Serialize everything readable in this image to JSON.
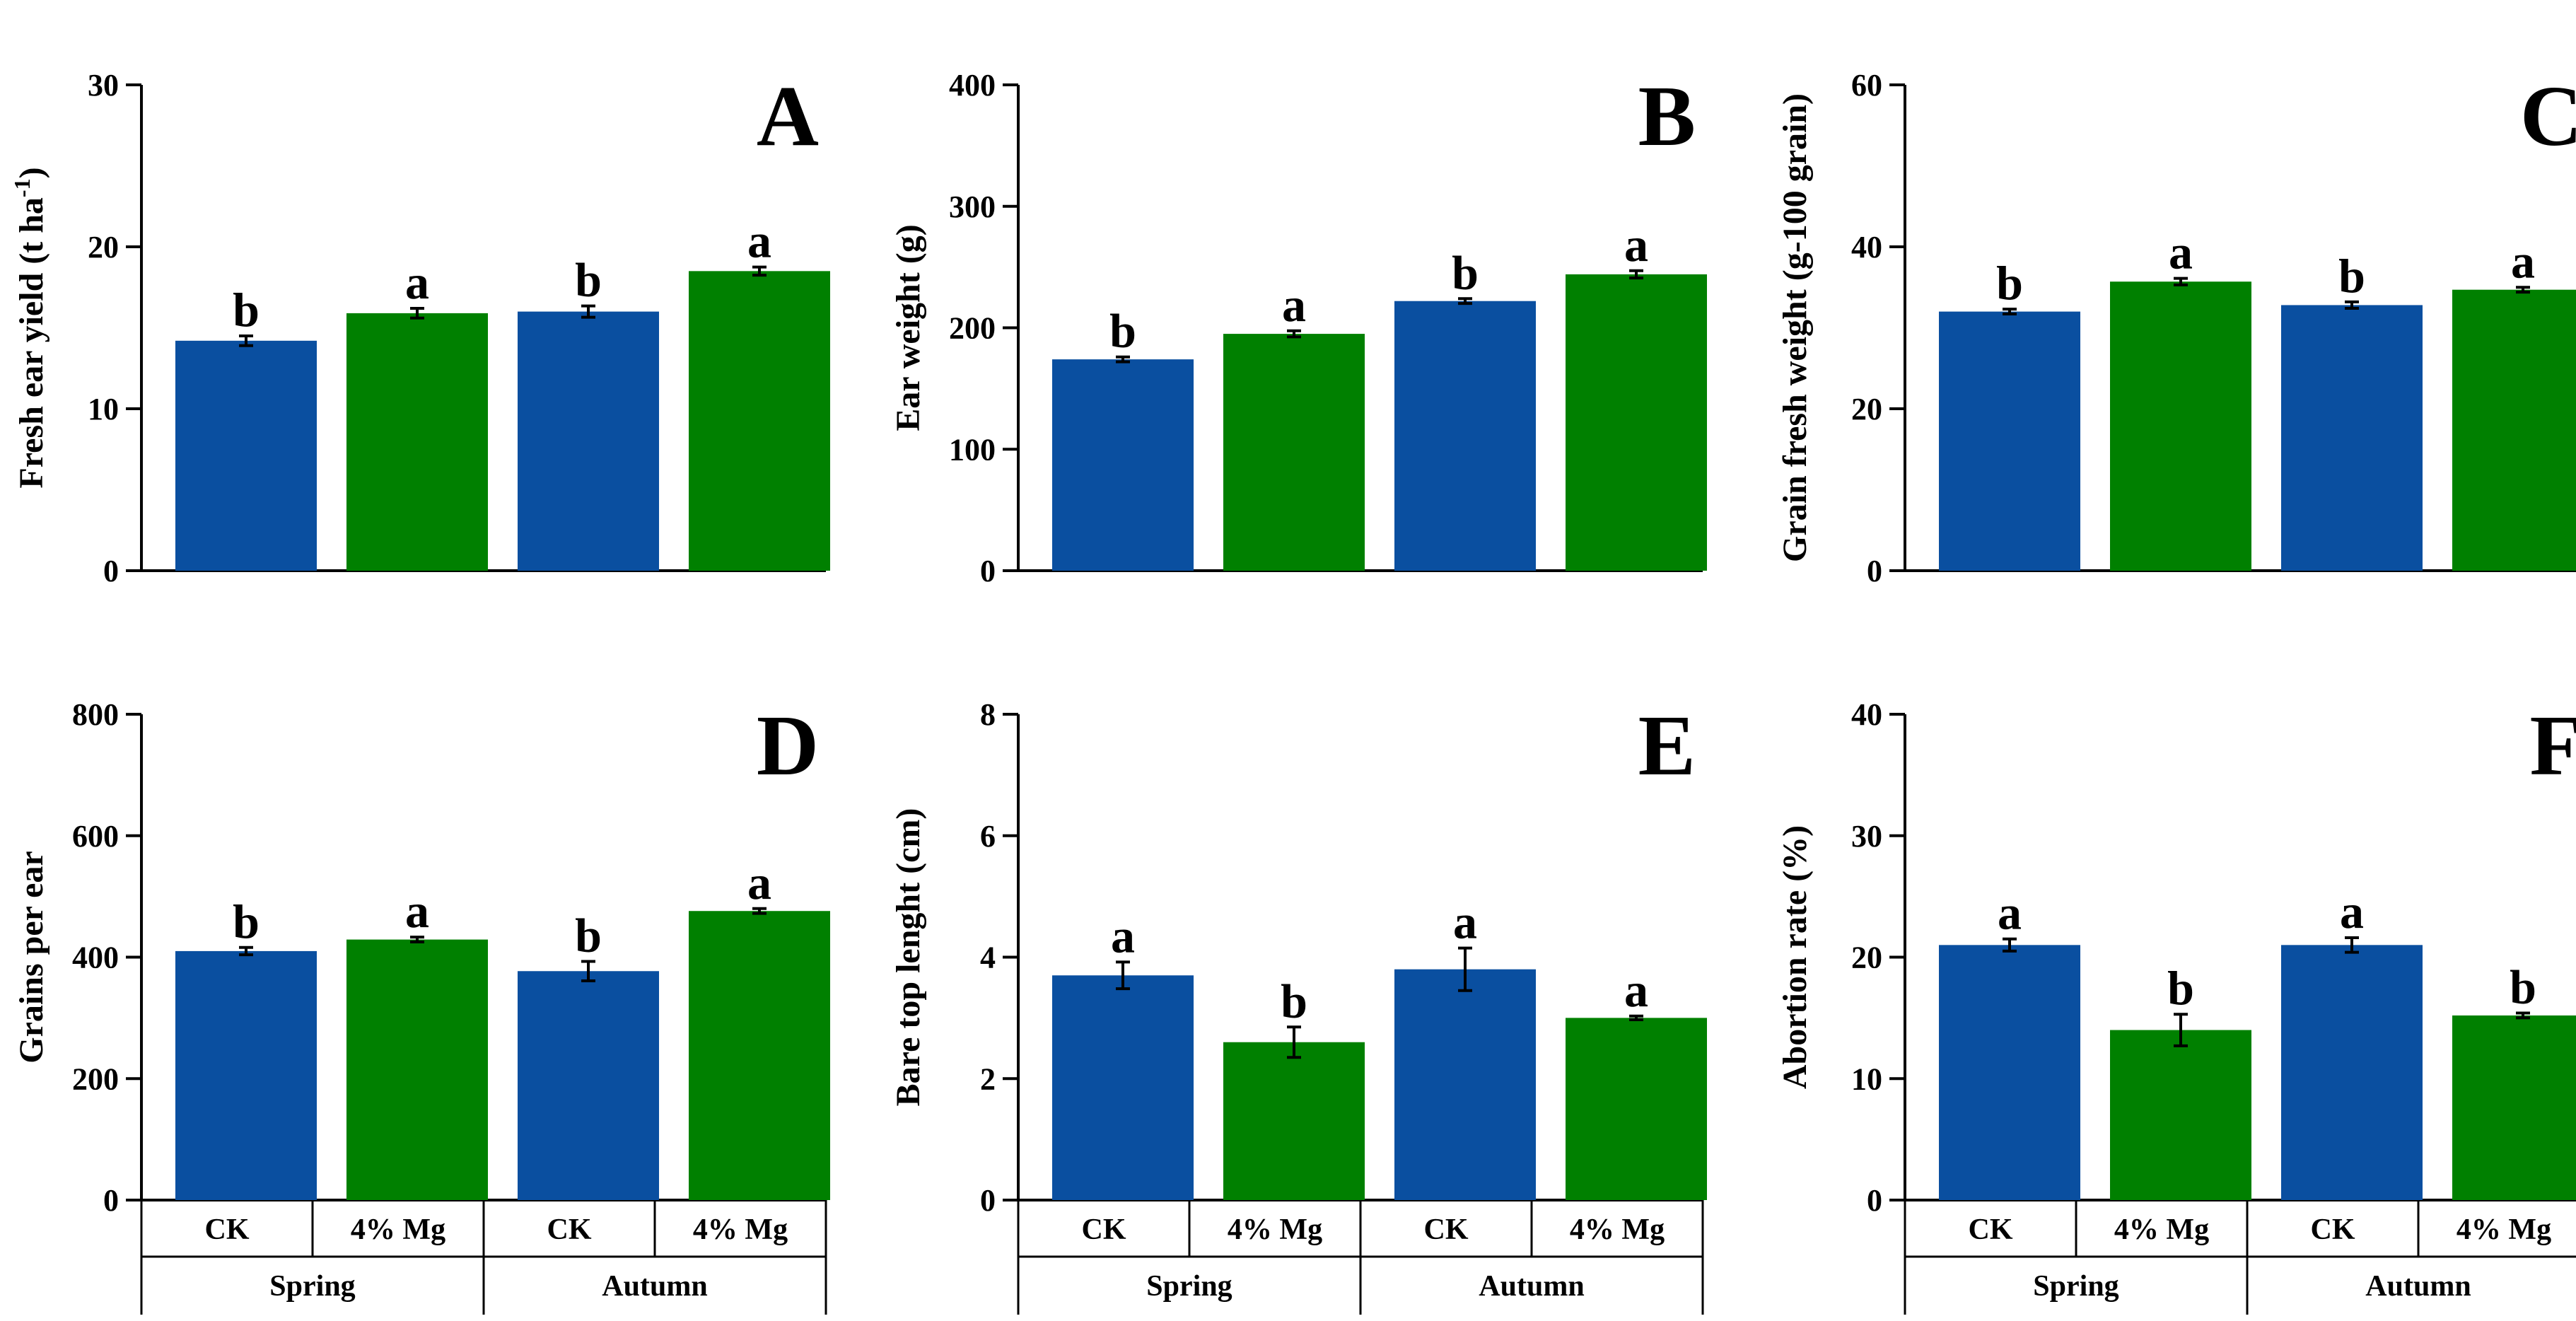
{
  "colors": {
    "ck": "#0a4fa0",
    "mg": "#008000",
    "axis": "#000000"
  },
  "chart_data": [
    {
      "type": "bar",
      "panel": "A",
      "ylabel_main": "Fresh ear yield (t ha",
      "ylabel_sup": "-1",
      "ylabel_end": ")",
      "ylim": [
        0,
        30
      ],
      "yticks": [
        "0",
        "10",
        "20",
        "30"
      ],
      "categories": [
        "CK",
        "4% Mg",
        "CK",
        "4% Mg"
      ],
      "groups": [
        "Spring",
        "Autumn"
      ],
      "values": [
        14.2,
        15.9,
        16.0,
        18.5
      ],
      "errors": [
        0.3,
        0.3,
        0.35,
        0.25
      ],
      "letters": [
        "b",
        "a",
        "b",
        "a"
      ]
    },
    {
      "type": "bar",
      "panel": "B",
      "ylabel": "Ear weight (g)",
      "ylim": [
        0,
        400
      ],
      "yticks": [
        "0",
        "100",
        "200",
        "300",
        "400"
      ],
      "categories": [
        "CK",
        "4% Mg",
        "CK",
        "4% Mg"
      ],
      "groups": [
        "Spring",
        "Autumn"
      ],
      "values": [
        174,
        195,
        222,
        244
      ],
      "errors": [
        2,
        2.5,
        2,
        3
      ],
      "letters": [
        "b",
        "a",
        "b",
        "a"
      ]
    },
    {
      "type": "bar",
      "panel": "C",
      "ylabel": "Grain fresh weight (g-100 grain)",
      "ylim": [
        0,
        60
      ],
      "yticks": [
        "0",
        "20",
        "40",
        "60"
      ],
      "categories": [
        "CK",
        "4% Mg",
        "CK",
        "4% Mg"
      ],
      "groups": [
        "Spring",
        "Autumn"
      ],
      "values": [
        32.0,
        35.7,
        32.8,
        34.7
      ],
      "errors": [
        0.3,
        0.4,
        0.4,
        0.3
      ],
      "letters": [
        "b",
        "a",
        "b",
        "a"
      ]
    },
    {
      "type": "bar",
      "panel": "D",
      "ylabel": "Grains per ear",
      "ylim": [
        0,
        800
      ],
      "yticks": [
        "0",
        "200",
        "400",
        "600",
        "800"
      ],
      "categories": [
        "CK",
        "4% Mg",
        "CK",
        "4% Mg"
      ],
      "groups": [
        "Spring",
        "Autumn"
      ],
      "values": [
        410,
        429,
        377,
        476
      ],
      "errors": [
        6,
        4,
        16,
        4
      ],
      "letters": [
        "b",
        "a",
        "b",
        "a"
      ]
    },
    {
      "type": "bar",
      "panel": "E",
      "ylabel": "Bare top lenght (cm)",
      "ylim": [
        0,
        8
      ],
      "yticks": [
        "0",
        "2",
        "4",
        "6",
        "8"
      ],
      "categories": [
        "CK",
        "4% Mg",
        "CK",
        "4% Mg"
      ],
      "groups": [
        "Spring",
        "Autumn"
      ],
      "values": [
        3.7,
        2.6,
        3.8,
        3.0
      ],
      "errors": [
        0.22,
        0.25,
        0.35,
        0.03
      ],
      "letters": [
        "a",
        "b",
        "a",
        "a"
      ]
    },
    {
      "type": "bar",
      "panel": "F",
      "ylabel": "Abortion rate (%)",
      "ylim": [
        0,
        40
      ],
      "yticks": [
        "0",
        "10",
        "20",
        "30",
        "40"
      ],
      "categories": [
        "CK",
        "4% Mg",
        "CK",
        "4% Mg"
      ],
      "groups": [
        "Spring",
        "Autumn"
      ],
      "values": [
        21.0,
        14.0,
        21.0,
        15.2
      ],
      "errors": [
        0.5,
        1.3,
        0.6,
        0.2
      ],
      "letters": [
        "a",
        "b",
        "a",
        "b"
      ]
    }
  ]
}
